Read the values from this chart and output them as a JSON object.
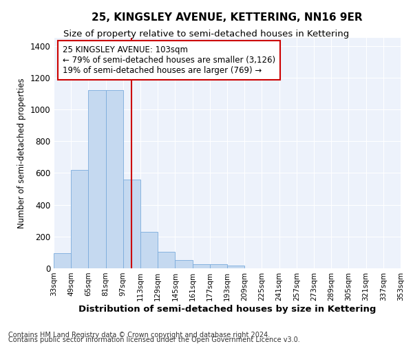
{
  "title": "25, KINGSLEY AVENUE, KETTERING, NN16 9ER",
  "subtitle": "Size of property relative to semi-detached houses in Kettering",
  "xlabel": "Distribution of semi-detached houses by size in Kettering",
  "ylabel": "Number of semi-detached properties",
  "footnote1": "Contains HM Land Registry data © Crown copyright and database right 2024.",
  "footnote2": "Contains public sector information licensed under the Open Government Licence v3.0.",
  "annotation_title": "25 KINGSLEY AVENUE: 103sqm",
  "annotation_line1": "← 79% of semi-detached houses are smaller (3,126)",
  "annotation_line2": "19% of semi-detached houses are larger (769) →",
  "bar_edges": [
    33,
    49,
    65,
    81,
    97,
    113,
    129,
    145,
    161,
    177,
    193,
    209,
    225,
    241,
    257,
    273,
    289,
    305,
    321,
    337,
    353
  ],
  "bar_values": [
    97,
    619,
    1122,
    1122,
    559,
    228,
    103,
    50,
    28,
    28,
    16,
    0,
    0,
    0,
    0,
    0,
    0,
    0,
    0,
    0
  ],
  "tick_labels": [
    "33sqm",
    "49sqm",
    "65sqm",
    "81sqm",
    "97sqm",
    "113sqm",
    "129sqm",
    "145sqm",
    "161sqm",
    "177sqm",
    "193sqm",
    "209sqm",
    "225sqm",
    "241sqm",
    "257sqm",
    "273sqm",
    "289sqm",
    "305sqm",
    "321sqm",
    "337sqm",
    "353sqm"
  ],
  "bar_color": "#c5d9f0",
  "bar_edge_color": "#7aabdc",
  "highlight_x": 105,
  "highlight_color": "#cc0000",
  "ylim": [
    0,
    1450
  ],
  "xlim": [
    33,
    353
  ],
  "background_color": "#edf2fb",
  "annotation_box_color": "#ffffff",
  "annotation_box_edge": "#cc0000",
  "grid_color": "#ffffff",
  "title_fontsize": 11,
  "subtitle_fontsize": 9.5,
  "ylabel_fontsize": 8.5,
  "xlabel_fontsize": 9.5,
  "annotation_fontsize": 8.5,
  "tick_fontsize": 7.5,
  "footnote_fontsize": 7
}
